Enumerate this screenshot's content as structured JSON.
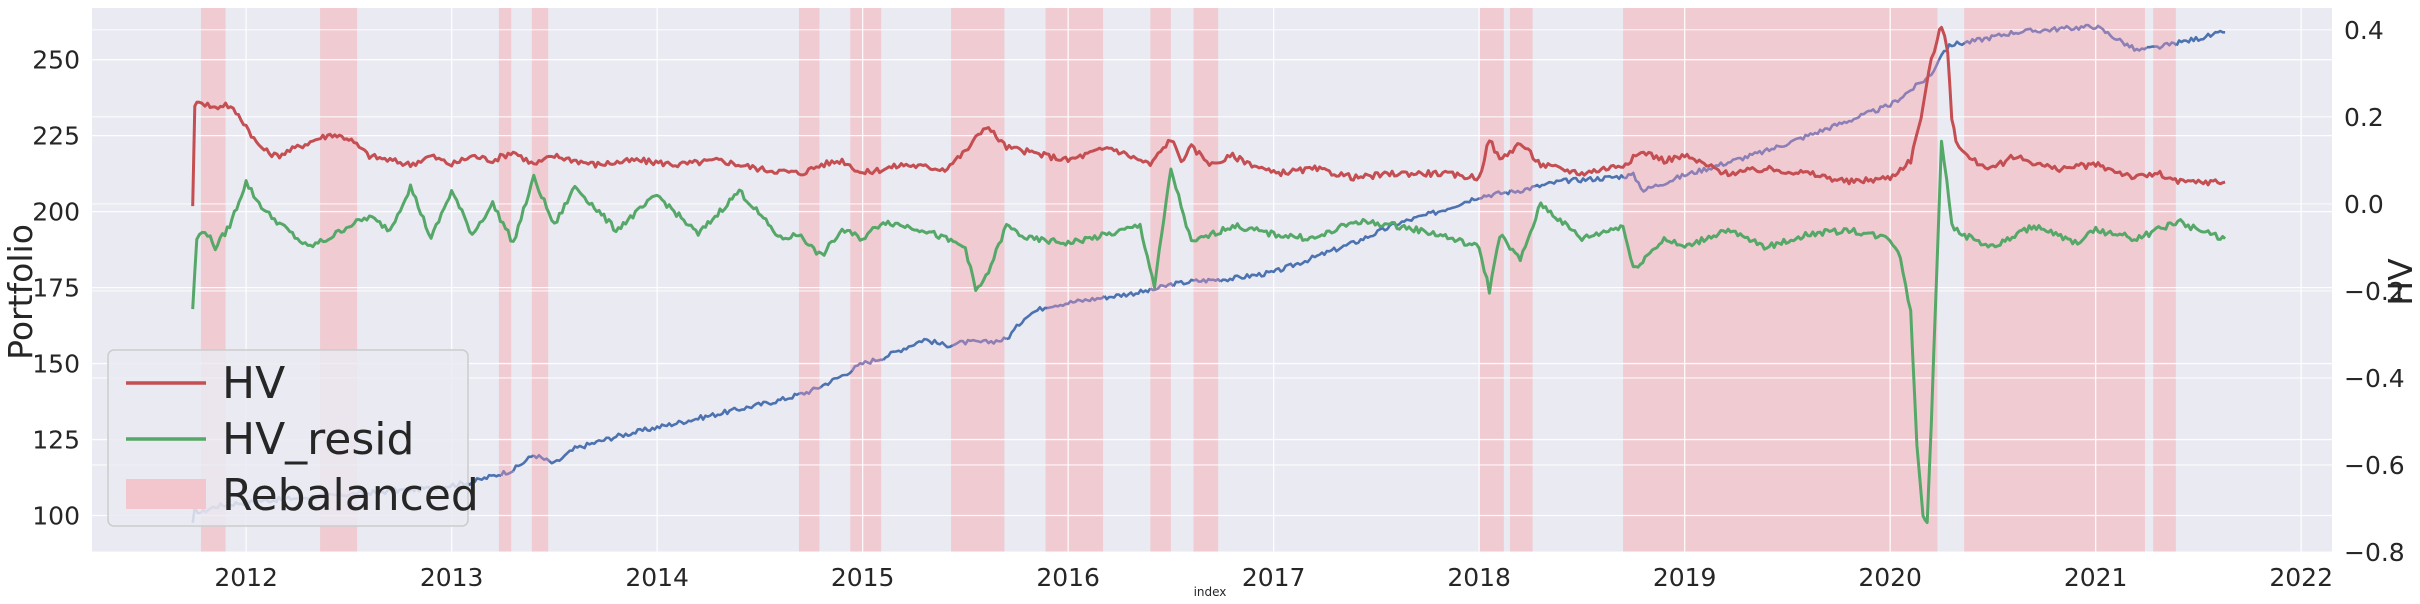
{
  "chart_data": {
    "type": "line",
    "xlabel": "index",
    "ylabel_left": "Portfolio",
    "ylabel_right": "HV",
    "x_ticks": [
      "2012",
      "2013",
      "2014",
      "2015",
      "2016",
      "2017",
      "2018",
      "2019",
      "2020",
      "2021",
      "2022"
    ],
    "y_left_ticks": [
      "100",
      "125",
      "150",
      "175",
      "200",
      "225",
      "250"
    ],
    "y_right_ticks": [
      "−0.8",
      "−0.6",
      "−0.4",
      "−0.2",
      "0.0",
      "0.2",
      "0.4"
    ],
    "xlim": [
      2011.25,
      2022.15
    ],
    "ylim_left": [
      88,
      267
    ],
    "ylim_right": [
      -0.8,
      0.45
    ],
    "grid": true,
    "legend_position": "lower-left",
    "legend": [
      {
        "label": "HV",
        "color": "#c44e52",
        "kind": "line"
      },
      {
        "label": "HV_resid",
        "color": "#55a868",
        "kind": "line"
      },
      {
        "label": "Rebalanced",
        "color": "#f2c6cc",
        "kind": "patch"
      }
    ],
    "colors": {
      "portfolio": "#4c72b0",
      "portfolio_rebalanced": "#8c7fb5",
      "hv": "#c44e52",
      "hv_resid": "#55a868",
      "rebalanced": "#f2c6cc",
      "background": "#eaeaf2",
      "grid": "#ffffff"
    },
    "rebalanced_periods": [
      [
        2011.78,
        2011.9
      ],
      [
        2012.36,
        2012.54
      ],
      [
        2013.23,
        2013.29
      ],
      [
        2013.39,
        2013.47
      ],
      [
        2014.69,
        2014.79
      ],
      [
        2014.94,
        2015.09
      ],
      [
        2015.43,
        2015.69
      ],
      [
        2015.89,
        2016.17
      ],
      [
        2016.4,
        2016.5
      ],
      [
        2016.61,
        2016.73
      ],
      [
        2018.0,
        2018.12
      ],
      [
        2018.15,
        2018.26
      ],
      [
        2018.7,
        2020.23
      ],
      [
        2020.36,
        2021.24
      ],
      [
        2021.28,
        2021.39
      ]
    ],
    "series": [
      {
        "name": "Portfolio",
        "axis": "left",
        "x": [
          2011.74,
          2011.75,
          2011.78,
          2011.85,
          2011.95,
          2012.1,
          2012.3,
          2012.5,
          2012.7,
          2012.9,
          2013.1,
          2013.3,
          2013.4,
          2013.5,
          2013.6,
          2013.8,
          2014.0,
          2014.2,
          2014.4,
          2014.6,
          2014.75,
          2014.9,
          2015.0,
          2015.1,
          2015.2,
          2015.3,
          2015.4,
          2015.5,
          2015.6,
          2015.7,
          2015.8,
          2015.9,
          2016.0,
          2016.2,
          2016.4,
          2016.5,
          2016.6,
          2016.8,
          2017.0,
          2017.2,
          2017.4,
          2017.6,
          2017.8,
          2018.0,
          2018.2,
          2018.4,
          2018.6,
          2018.75,
          2018.8,
          2019.0,
          2019.2,
          2019.4,
          2019.6,
          2019.8,
          2020.0,
          2020.1,
          2020.2,
          2020.25,
          2020.3,
          2020.4,
          2020.6,
          2020.8,
          2021.0,
          2021.2,
          2021.3,
          2021.5,
          2021.63
        ],
        "values": [
          97,
          102,
          101,
          103,
          104,
          105,
          106,
          107,
          108,
          109,
          111,
          115,
          120,
          117,
          122,
          126,
          129,
          132,
          135,
          138,
          141,
          146,
          150,
          152,
          155,
          158,
          156,
          157,
          157,
          158,
          166,
          169,
          170,
          172,
          174,
          176,
          177,
          178,
          180,
          185,
          190,
          196,
          200,
          205,
          207,
          210,
          211,
          212,
          207,
          212,
          216,
          220,
          225,
          230,
          235,
          240,
          245,
          252,
          255,
          256,
          259,
          260,
          261,
          253,
          254,
          257,
          259
        ]
      },
      {
        "name": "HV",
        "axis": "right",
        "x": [
          2011.74,
          2011.75,
          2011.77,
          2011.8,
          2011.85,
          2011.9,
          2011.95,
          2012.0,
          2012.05,
          2012.1,
          2012.15,
          2012.25,
          2012.35,
          2012.42,
          2012.5,
          2012.6,
          2012.7,
          2012.8,
          2012.9,
          2013.0,
          2013.1,
          2013.2,
          2013.3,
          2013.4,
          2013.5,
          2013.7,
          2013.9,
          2014.1,
          2014.3,
          2014.5,
          2014.7,
          2014.8,
          2014.9,
          2015.0,
          2015.2,
          2015.4,
          2015.5,
          2015.6,
          2015.7,
          2015.8,
          2016.0,
          2016.2,
          2016.4,
          2016.5,
          2016.55,
          2016.6,
          2016.7,
          2016.8,
          2017.0,
          2017.2,
          2017.4,
          2017.6,
          2017.8,
          2018.0,
          2018.05,
          2018.1,
          2018.2,
          2018.3,
          2018.5,
          2018.7,
          2018.8,
          2018.9,
          2019.0,
          2019.2,
          2019.4,
          2019.6,
          2019.8,
          2020.0,
          2020.1,
          2020.15,
          2020.2,
          2020.23,
          2020.25,
          2020.28,
          2020.3,
          2020.32,
          2020.35,
          2020.4,
          2020.5,
          2020.6,
          2020.8,
          2021.0,
          2021.2,
          2021.3,
          2021.4,
          2021.5,
          2021.63
        ],
        "values": [
          0.0,
          0.22,
          0.24,
          0.23,
          0.22,
          0.23,
          0.21,
          0.18,
          0.14,
          0.12,
          0.11,
          0.13,
          0.15,
          0.16,
          0.15,
          0.11,
          0.1,
          0.09,
          0.11,
          0.09,
          0.11,
          0.1,
          0.12,
          0.09,
          0.11,
          0.09,
          0.1,
          0.09,
          0.1,
          0.08,
          0.07,
          0.09,
          0.1,
          0.07,
          0.09,
          0.08,
          0.12,
          0.18,
          0.13,
          0.12,
          0.1,
          0.13,
          0.09,
          0.15,
          0.1,
          0.13,
          0.09,
          0.11,
          0.07,
          0.08,
          0.06,
          0.07,
          0.07,
          0.06,
          0.15,
          0.1,
          0.14,
          0.09,
          0.07,
          0.09,
          0.12,
          0.1,
          0.11,
          0.07,
          0.08,
          0.07,
          0.05,
          0.06,
          0.1,
          0.2,
          0.33,
          0.38,
          0.41,
          0.35,
          0.2,
          0.15,
          0.12,
          0.1,
          0.08,
          0.11,
          0.08,
          0.09,
          0.06,
          0.07,
          0.05,
          0.05,
          0.05
        ]
      },
      {
        "name": "HV_resid",
        "axis": "right",
        "x": [
          2011.74,
          2011.76,
          2011.8,
          2011.85,
          2011.92,
          2012.0,
          2012.05,
          2012.1,
          2012.2,
          2012.3,
          2012.4,
          2012.5,
          2012.6,
          2012.7,
          2012.8,
          2012.9,
          2013.0,
          2013.1,
          2013.2,
          2013.3,
          2013.4,
          2013.5,
          2013.6,
          2013.8,
          2014.0,
          2014.2,
          2014.4,
          2014.6,
          2014.7,
          2014.75,
          2014.8,
          2014.9,
          2015.0,
          2015.1,
          2015.3,
          2015.5,
          2015.55,
          2015.6,
          2015.7,
          2015.8,
          2016.0,
          2016.2,
          2016.35,
          2016.42,
          2016.5,
          2016.6,
          2016.8,
          2017.0,
          2017.2,
          2017.4,
          2017.6,
          2017.8,
          2018.0,
          2018.05,
          2018.1,
          2018.2,
          2018.3,
          2018.5,
          2018.7,
          2018.75,
          2018.9,
          2019.0,
          2019.2,
          2019.4,
          2019.6,
          2019.8,
          2020.0,
          2020.05,
          2020.1,
          2020.13,
          2020.16,
          2020.18,
          2020.2,
          2020.25,
          2020.3,
          2020.35,
          2020.5,
          2020.7,
          2020.9,
          2021.0,
          2021.2,
          2021.4,
          2021.5,
          2021.63
        ],
        "values": [
          -0.24,
          -0.08,
          -0.06,
          -0.1,
          -0.05,
          0.05,
          0.01,
          -0.02,
          -0.06,
          -0.1,
          -0.08,
          -0.05,
          -0.03,
          -0.06,
          0.04,
          -0.08,
          0.03,
          -0.07,
          0.0,
          -0.09,
          0.06,
          -0.05,
          0.04,
          -0.06,
          0.02,
          -0.07,
          0.03,
          -0.08,
          -0.07,
          -0.1,
          -0.12,
          -0.06,
          -0.08,
          -0.04,
          -0.06,
          -0.1,
          -0.2,
          -0.17,
          -0.05,
          -0.08,
          -0.09,
          -0.07,
          -0.05,
          -0.19,
          0.08,
          -0.09,
          -0.05,
          -0.07,
          -0.08,
          -0.04,
          -0.05,
          -0.07,
          -0.1,
          -0.2,
          -0.07,
          -0.13,
          0.0,
          -0.08,
          -0.05,
          -0.15,
          -0.08,
          -0.1,
          -0.06,
          -0.1,
          -0.07,
          -0.06,
          -0.08,
          -0.12,
          -0.25,
          -0.55,
          -0.72,
          -0.73,
          -0.5,
          0.15,
          -0.05,
          -0.07,
          -0.1,
          -0.05,
          -0.09,
          -0.06,
          -0.08,
          -0.04,
          -0.06,
          -0.08
        ]
      }
    ]
  }
}
